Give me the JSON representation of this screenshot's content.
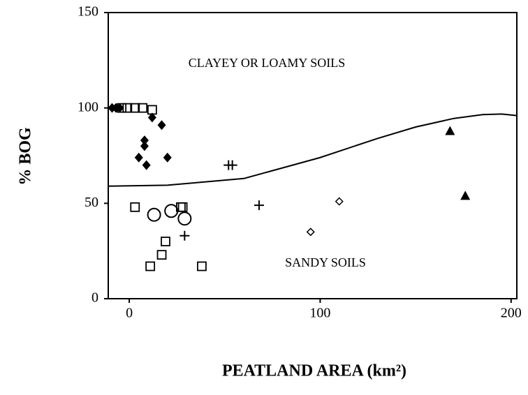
{
  "chart_data": {
    "type": "scatter",
    "xlabel": "PEATLAND AREA (km²)",
    "ylabel": "% BOG",
    "annotations": [
      "CLAYEY OR LOAMY SOILS",
      "SANDY SOILS"
    ],
    "xlim": [
      -11,
      203
    ],
    "ylim": [
      0,
      150
    ],
    "xticks": [
      0,
      100,
      200
    ],
    "yticks": [
      0,
      50,
      100,
      150
    ],
    "color": "#000000",
    "series": [
      {
        "marker": "filled-diamond",
        "x": [
          -9,
          -7,
          -5,
          12,
          17,
          8,
          8,
          5,
          9,
          20
        ],
        "values": [
          100,
          100,
          100,
          95,
          91,
          83,
          80,
          74,
          70,
          74
        ]
      },
      {
        "marker": "open-square",
        "x": [
          -4,
          -1,
          3,
          7,
          12,
          3,
          27,
          28,
          11,
          17,
          19,
          38
        ],
        "values": [
          100,
          100,
          100,
          100,
          99,
          48,
          48,
          48,
          17,
          23,
          30,
          17
        ]
      },
      {
        "marker": "open-circle",
        "x": [
          13,
          22,
          29
        ],
        "values": [
          44,
          46,
          42
        ]
      },
      {
        "marker": "plus",
        "x": [
          29,
          52,
          54,
          68
        ],
        "values": [
          33,
          70,
          70,
          49
        ]
      },
      {
        "marker": "open-diamond",
        "x": [
          95,
          110
        ],
        "values": [
          35,
          51
        ]
      },
      {
        "marker": "filled-triangle",
        "x": [
          168,
          176
        ],
        "values": [
          88,
          54
        ]
      }
    ],
    "curve": {
      "x": [
        -11,
        20,
        60,
        100,
        130,
        150,
        170,
        185,
        195,
        203
      ],
      "values": [
        59,
        59.5,
        63,
        74,
        84,
        90,
        94.5,
        96.5,
        96.8,
        96
      ]
    }
  }
}
